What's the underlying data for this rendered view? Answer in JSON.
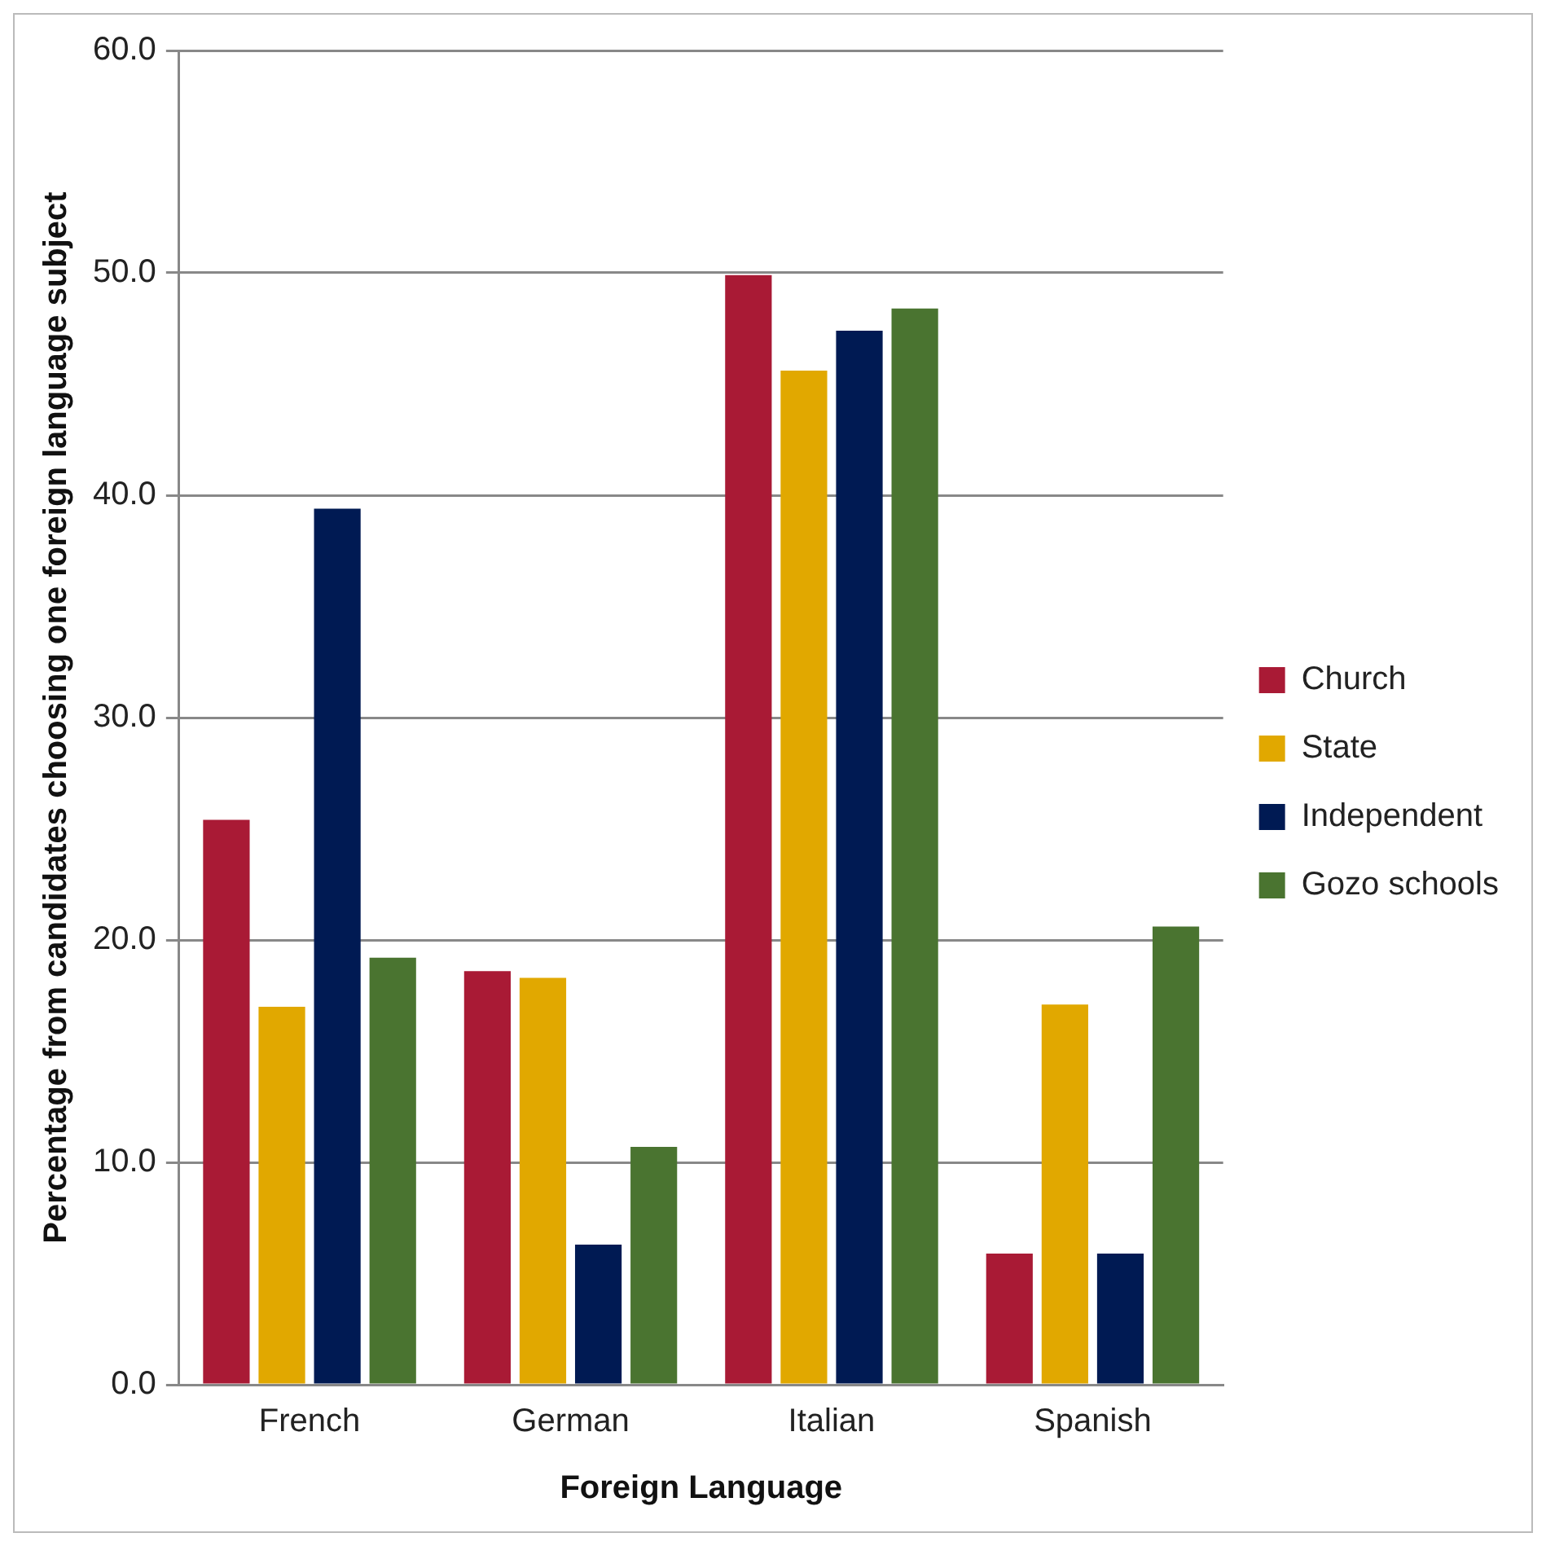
{
  "chart_data": {
    "type": "bar",
    "xlabel": "Foreign Language",
    "ylabel": "Percentage from candidates choosing one foreign language subject",
    "categories": [
      "French",
      "German",
      "Italian",
      "Spanish"
    ],
    "series": [
      {
        "name": "Church",
        "color": "#a91a35",
        "values": [
          25.4,
          18.6,
          49.9,
          5.9
        ]
      },
      {
        "name": "State",
        "color": "#e1a800",
        "values": [
          17.0,
          18.3,
          45.6,
          17.1
        ]
      },
      {
        "name": "Independent",
        "color": "#001a53",
        "values": [
          39.4,
          6.3,
          47.4,
          5.9
        ]
      },
      {
        "name": "Gozo schools",
        "color": "#4a7430",
        "values": [
          19.2,
          10.7,
          48.4,
          20.6
        ]
      }
    ],
    "ylim": [
      0,
      60
    ],
    "yticks": [
      {
        "value": 0,
        "label": "0.0"
      },
      {
        "value": 10,
        "label": "10.0"
      },
      {
        "value": 20,
        "label": "20.0"
      },
      {
        "value": 30,
        "label": "30.0"
      },
      {
        "value": 40,
        "label": "40.0"
      },
      {
        "value": 50,
        "label": "50.0"
      },
      {
        "value": 60,
        "label": "60.0"
      }
    ],
    "grid": "y",
    "legend": "right"
  }
}
